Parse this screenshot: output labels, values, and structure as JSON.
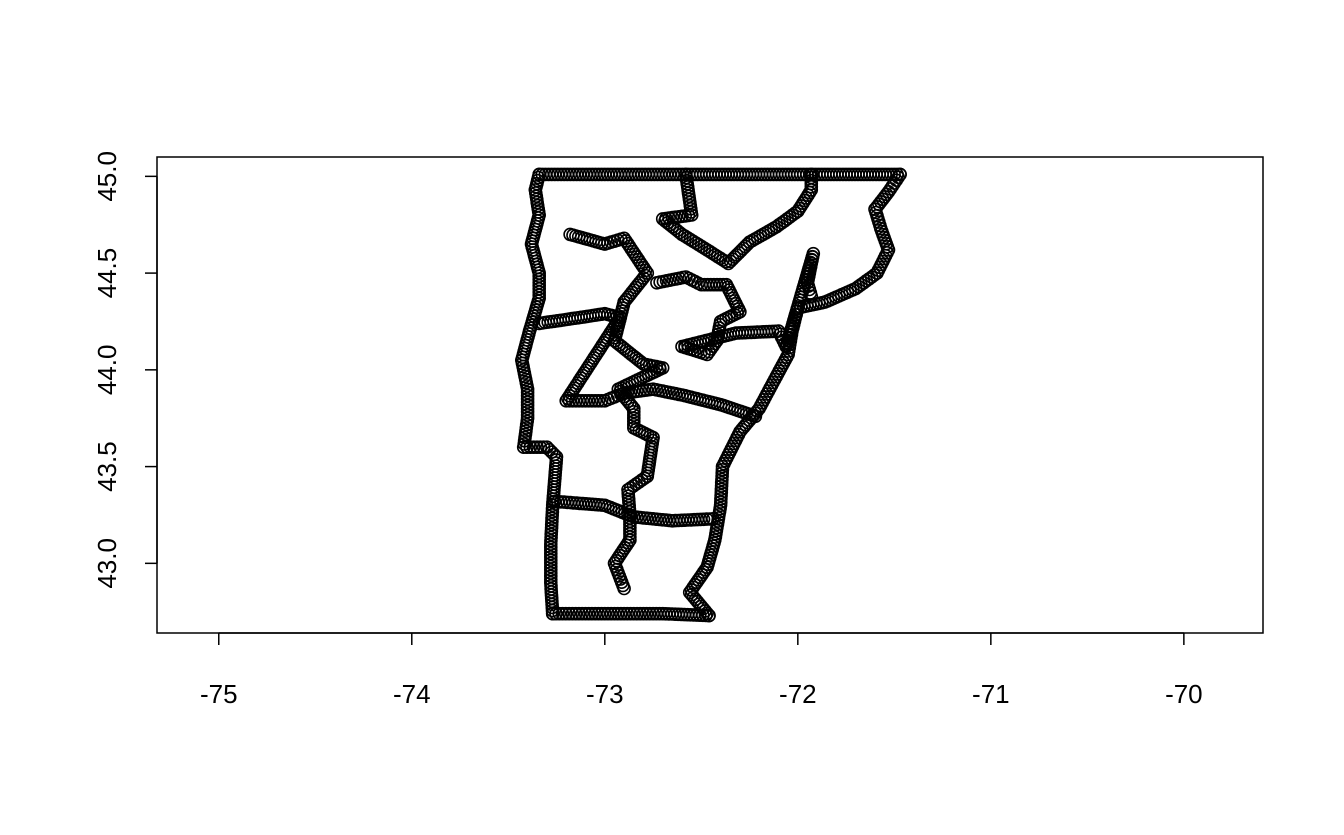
{
  "chart_data": {
    "type": "scatter",
    "title": "",
    "xlabel": "",
    "ylabel": "",
    "xlim": [
      -75.32,
      -69.59
    ],
    "ylim": [
      42.64,
      45.1
    ],
    "x_ticks": [
      -75,
      -74,
      -73,
      -72,
      -71,
      -70
    ],
    "x_tick_labels": [
      "-75",
      "-74",
      "-73",
      "-72",
      "-71",
      "-70"
    ],
    "y_ticks": [
      43.0,
      43.5,
      44.0,
      44.5,
      45.0
    ],
    "y_tick_labels": [
      "43.0",
      "43.5",
      "44.0",
      "44.5",
      "45.0"
    ],
    "grid": false,
    "marker": "open-circle",
    "color": "#000000",
    "series": [
      {
        "points": [
          [
            -73.34,
            45.01
          ],
          [
            -73.0,
            45.01
          ],
          [
            -72.55,
            45.01
          ],
          [
            -72.0,
            45.01
          ],
          [
            -71.47,
            45.01
          ],
          [
            -71.47,
            45.01
          ],
          [
            -71.53,
            44.92
          ],
          [
            -71.6,
            44.83
          ],
          [
            -71.57,
            44.73
          ],
          [
            -71.53,
            44.62
          ],
          [
            -71.59,
            44.5
          ],
          [
            -71.7,
            44.42
          ],
          [
            -71.86,
            44.35
          ],
          [
            -72.0,
            44.32
          ],
          [
            -72.03,
            44.2
          ],
          [
            -72.05,
            44.08
          ],
          [
            -72.12,
            43.95
          ],
          [
            -72.2,
            43.8
          ],
          [
            -72.3,
            43.68
          ],
          [
            -72.39,
            43.5
          ],
          [
            -72.4,
            43.3
          ],
          [
            -72.43,
            43.12
          ],
          [
            -72.47,
            42.98
          ],
          [
            -72.56,
            42.85
          ],
          [
            -72.46,
            42.73
          ],
          [
            -72.46,
            42.73
          ],
          [
            -72.7,
            42.74
          ],
          [
            -72.9,
            42.74
          ],
          [
            -73.1,
            42.74
          ],
          [
            -73.27,
            42.74
          ],
          [
            -73.27,
            42.74
          ],
          [
            -73.28,
            42.9
          ],
          [
            -73.28,
            43.1
          ],
          [
            -73.27,
            43.3
          ],
          [
            -73.25,
            43.55
          ],
          [
            -73.3,
            43.6
          ],
          [
            -73.42,
            43.6
          ],
          [
            -73.4,
            43.75
          ],
          [
            -73.4,
            43.9
          ],
          [
            -73.43,
            44.05
          ],
          [
            -73.39,
            44.2
          ],
          [
            -73.34,
            44.37
          ],
          [
            -73.34,
            44.5
          ],
          [
            -73.38,
            44.65
          ],
          [
            -73.34,
            44.8
          ],
          [
            -73.36,
            44.93
          ],
          [
            -73.34,
            45.01
          ],
          [
            -73.34,
            44.24
          ],
          [
            -73.2,
            44.26
          ],
          [
            -73.0,
            44.29
          ],
          [
            -72.92,
            44.27
          ],
          [
            -73.2,
            43.84
          ],
          [
            -73.0,
            43.84
          ],
          [
            -72.9,
            43.88
          ],
          [
            -72.75,
            43.9
          ],
          [
            -72.6,
            43.87
          ],
          [
            -72.4,
            43.82
          ],
          [
            -72.22,
            43.76
          ],
          [
            -73.26,
            43.32
          ],
          [
            -73.0,
            43.3
          ],
          [
            -72.85,
            43.24
          ],
          [
            -72.65,
            43.22
          ],
          [
            -72.44,
            43.23
          ],
          [
            -73.18,
            44.7
          ],
          [
            -73.0,
            44.65
          ],
          [
            -72.9,
            44.68
          ],
          [
            -72.78,
            44.5
          ],
          [
            -72.9,
            44.35
          ],
          [
            -72.95,
            44.15
          ],
          [
            -72.8,
            44.03
          ],
          [
            -72.7,
            44.01
          ],
          [
            -72.93,
            43.9
          ],
          [
            -72.85,
            43.8
          ],
          [
            -72.85,
            43.7
          ],
          [
            -72.75,
            43.65
          ],
          [
            -72.78,
            43.45
          ],
          [
            -72.88,
            43.38
          ],
          [
            -72.87,
            43.25
          ],
          [
            -72.87,
            43.12
          ],
          [
            -72.95,
            43.0
          ],
          [
            -72.9,
            42.87
          ],
          [
            -72.58,
            45.01
          ],
          [
            -72.55,
            44.8
          ],
          [
            -72.7,
            44.78
          ],
          [
            -72.6,
            44.7
          ],
          [
            -72.47,
            44.62
          ],
          [
            -72.36,
            44.55
          ],
          [
            -72.25,
            44.66
          ],
          [
            -72.11,
            44.74
          ],
          [
            -72.0,
            44.82
          ],
          [
            -71.93,
            44.93
          ],
          [
            -71.93,
            45.01
          ],
          [
            -72.73,
            44.45
          ],
          [
            -72.58,
            44.48
          ],
          [
            -72.5,
            44.44
          ],
          [
            -72.37,
            44.44
          ],
          [
            -72.3,
            44.3
          ],
          [
            -72.4,
            44.25
          ],
          [
            -72.42,
            44.15
          ],
          [
            -72.47,
            44.08
          ],
          [
            -72.6,
            44.12
          ],
          [
            -72.32,
            44.19
          ],
          [
            -72.1,
            44.2
          ],
          [
            -72.06,
            44.12
          ],
          [
            -71.92,
            44.6
          ],
          [
            -71.95,
            44.45
          ],
          [
            -71.93,
            44.38
          ]
        ]
      }
    ]
  }
}
